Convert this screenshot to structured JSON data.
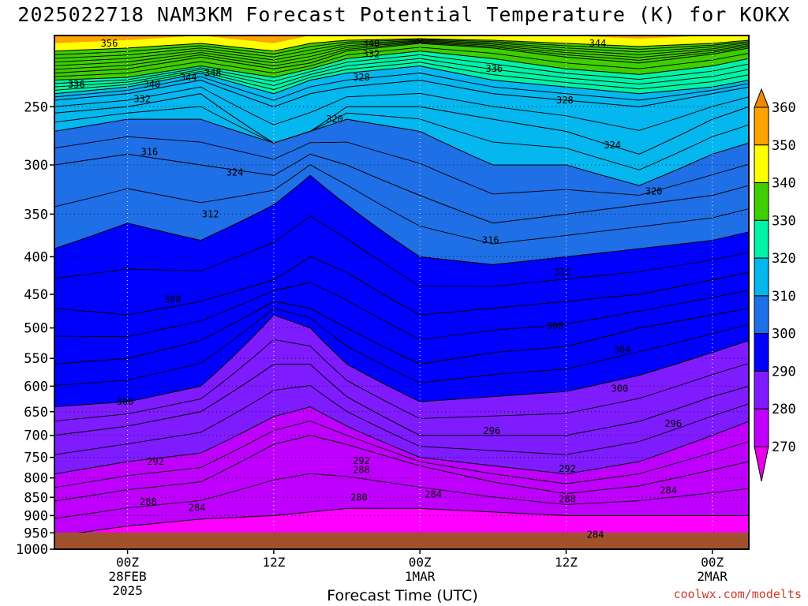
{
  "chart_data": {
    "type": "heatmap",
    "title": "2025022718 NAM3KM Forecast Potential Temperature (K) for KOKX",
    "xlabel": "Forecast Time (UTC)",
    "ylabel": "",
    "credit": "coolwx.com/modelts",
    "y_axis_log_pressure": true,
    "ylim": [
      1000,
      200
    ],
    "yticks": [
      250,
      300,
      350,
      400,
      450,
      500,
      550,
      600,
      650,
      700,
      750,
      800,
      850,
      900,
      950,
      1000
    ],
    "x_time_range_hours": [
      -6,
      51
    ],
    "xticks": [
      {
        "hour": 0,
        "lines": [
          "00Z",
          "28FEB",
          "2025"
        ]
      },
      {
        "hour": 12,
        "lines": [
          "12Z"
        ]
      },
      {
        "hour": 24,
        "lines": [
          "00Z",
          "1MAR"
        ]
      },
      {
        "hour": 36,
        "lines": [
          "12Z"
        ]
      },
      {
        "hour": 48,
        "lines": [
          "00Z",
          "2MAR"
        ]
      }
    ],
    "colorbar": {
      "levels": [
        270,
        280,
        290,
        300,
        310,
        320,
        330,
        340,
        350,
        360
      ],
      "colors": [
        "#ff00ff",
        "#c000ff",
        "#7f1bff",
        "#0000ff",
        "#1f6fe6",
        "#04b7ee",
        "#00f3a6",
        "#3fce00",
        "#ffff00",
        "#ffa300"
      ],
      "extend": "both",
      "end_colors": {
        "low": "#e800e8",
        "high": "#ee8800"
      }
    },
    "terrain_color": "#a0522d",
    "contour_interval": 2,
    "isentropes_height_pressure_by_hour": {
      "hours": [
        -6,
        0,
        6,
        12,
        15,
        18,
        24,
        30,
        36,
        42,
        48,
        51
      ],
      "series": [
        {
          "theta": 284,
          "pressure": [
            960,
            930,
            910,
            900,
            890,
            880,
            880,
            890,
            900,
            900,
            900,
            900
          ]
        },
        {
          "theta": 288,
          "pressure": [
            860,
            830,
            810,
            720,
            700,
            720,
            770,
            810,
            840,
            820,
            780,
            760
          ]
        },
        {
          "theta": 292,
          "pressure": [
            790,
            760,
            740,
            660,
            640,
            680,
            750,
            770,
            790,
            760,
            700,
            670
          ]
        },
        {
          "theta": 296,
          "pressure": [
            700,
            680,
            650,
            560,
            560,
            620,
            700,
            700,
            700,
            670,
            620,
            600
          ]
        },
        {
          "theta": 300,
          "pressure": [
            640,
            630,
            600,
            480,
            500,
            560,
            630,
            620,
            610,
            580,
            540,
            520
          ]
        },
        {
          "theta": 304,
          "pressure": [
            560,
            550,
            520,
            460,
            470,
            500,
            560,
            540,
            530,
            500,
            480,
            470
          ]
        },
        {
          "theta": 308,
          "pressure": [
            470,
            480,
            460,
            430,
            400,
            420,
            480,
            470,
            460,
            450,
            430,
            420
          ]
        },
        {
          "theta": 312,
          "pressure": [
            390,
            360,
            380,
            340,
            310,
            340,
            400,
            410,
            400,
            390,
            380,
            370
          ]
        },
        {
          "theta": 316,
          "pressure": [
            300,
            290,
            300,
            310,
            290,
            300,
            330,
            360,
            350,
            340,
            330,
            320
          ]
        },
        {
          "theta": 320,
          "pressure": [
            270,
            260,
            260,
            280,
            270,
            260,
            270,
            300,
            300,
            320,
            290,
            280
          ]
        },
        {
          "theta": 324,
          "pressure": [
            255,
            250,
            240,
            280,
            270,
            250,
            250,
            260,
            270,
            290,
            260,
            250
          ]
        },
        {
          "theta": 328,
          "pressure": [
            245,
            240,
            230,
            250,
            240,
            235,
            230,
            240,
            245,
            250,
            240,
            235
          ]
        },
        {
          "theta": 332,
          "pressure": [
            240,
            235,
            225,
            240,
            230,
            225,
            220,
            230,
            235,
            240,
            235,
            230
          ]
        },
        {
          "theta": 340,
          "pressure": [
            230,
            228,
            220,
            228,
            222,
            215,
            210,
            215,
            222,
            226,
            220,
            215
          ]
        },
        {
          "theta": 344,
          "pressure": [
            225,
            222,
            214,
            222,
            218,
            210,
            205,
            208,
            214,
            218,
            212,
            208
          ]
        },
        {
          "theta": 356,
          "pressure": [
            210,
            208,
            205,
            210,
            205,
            203,
            202,
            203,
            205,
            207,
            205,
            203
          ]
        }
      ]
    },
    "contour_labels": [
      {
        "text": "356",
        "hour": -1.5,
        "p": 205
      },
      {
        "text": "336",
        "hour": -4.2,
        "p": 233
      },
      {
        "text": "340",
        "hour": 2.0,
        "p": 233
      },
      {
        "text": "332",
        "hour": 1.2,
        "p": 244
      },
      {
        "text": "344",
        "hour": 5.0,
        "p": 228
      },
      {
        "text": "348",
        "hour": 7.0,
        "p": 225
      },
      {
        "text": "340",
        "hour": 20.0,
        "p": 205
      },
      {
        "text": "332",
        "hour": 20.0,
        "p": 212
      },
      {
        "text": "328",
        "hour": 19.2,
        "p": 228
      },
      {
        "text": "320",
        "hour": 17.0,
        "p": 260
      },
      {
        "text": "316",
        "hour": 1.8,
        "p": 288
      },
      {
        "text": "324",
        "hour": 8.8,
        "p": 307
      },
      {
        "text": "312",
        "hour": 6.8,
        "p": 350
      },
      {
        "text": "308",
        "hour": 3.7,
        "p": 457
      },
      {
        "text": "300",
        "hour": -0.2,
        "p": 630
      },
      {
        "text": "292",
        "hour": 2.3,
        "p": 760
      },
      {
        "text": "288",
        "hour": 1.7,
        "p": 862
      },
      {
        "text": "284",
        "hour": 5.7,
        "p": 878
      },
      {
        "text": "336",
        "hour": 30.1,
        "p": 222
      },
      {
        "text": "344",
        "hour": 38.6,
        "p": 205
      },
      {
        "text": "328",
        "hour": 35.9,
        "p": 245
      },
      {
        "text": "324",
        "hour": 39.8,
        "p": 282
      },
      {
        "text": "320",
        "hour": 43.2,
        "p": 326
      },
      {
        "text": "316",
        "hour": 29.8,
        "p": 380
      },
      {
        "text": "312",
        "hour": 35.7,
        "p": 420
      },
      {
        "text": "308",
        "hour": 35.1,
        "p": 497
      },
      {
        "text": "304",
        "hour": 40.6,
        "p": 535
      },
      {
        "text": "300",
        "hour": 40.4,
        "p": 605
      },
      {
        "text": "296",
        "hour": 29.9,
        "p": 690
      },
      {
        "text": "296",
        "hour": 44.8,
        "p": 675
      },
      {
        "text": "292",
        "hour": 19.2,
        "p": 758
      },
      {
        "text": "288",
        "hour": 19.2,
        "p": 780
      },
      {
        "text": "292",
        "hour": 36.1,
        "p": 777
      },
      {
        "text": "288",
        "hour": 36.1,
        "p": 855
      },
      {
        "text": "280",
        "hour": 19.0,
        "p": 850
      },
      {
        "text": "284",
        "hour": 25.1,
        "p": 842
      },
      {
        "text": "284",
        "hour": 44.4,
        "p": 832
      },
      {
        "text": "284",
        "hour": 38.4,
        "p": 955
      }
    ]
  }
}
